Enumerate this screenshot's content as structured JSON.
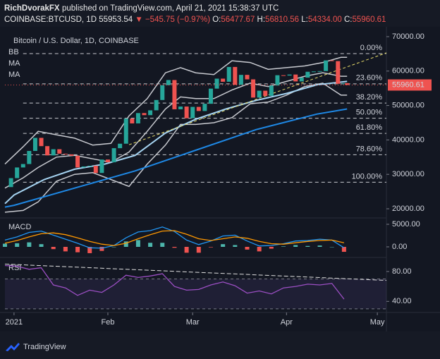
{
  "header": {
    "author": "RichDvorakFX",
    "published": "published on TradingView.com, April 21, 2021 15:38:37 UTC",
    "symbol": "COINBASE:BTCUSD, 1D",
    "price": "55953.54",
    "change": "▼ −545.75 (−0.97%)",
    "o_label": "O:",
    "o": "56477.67",
    "h_label": "H:",
    "h": "56810.56",
    "l_label": "L:",
    "l": "54334.00",
    "c_label": "C:",
    "c": "55960.61"
  },
  "footer": {
    "brand": "TradingView"
  },
  "chart_data": [
    {
      "type": "candlestick",
      "title": "Bitcoin / U.S. Dollar, 1D, COINBASE",
      "up_color": "#26a69a",
      "down_color": "#ef5350",
      "x": [
        -3,
        -1,
        1,
        3,
        5,
        7,
        9,
        11,
        13,
        15,
        17,
        19,
        21,
        23,
        25,
        27,
        29,
        31,
        33,
        35,
        37,
        39,
        41,
        43,
        45,
        47,
        49,
        51,
        53,
        55,
        57,
        59,
        61,
        63,
        65,
        67,
        69,
        71,
        73,
        75,
        77,
        79,
        81,
        83,
        85,
        87,
        89,
        91,
        93,
        95,
        97,
        99,
        101,
        103,
        105,
        107,
        109,
        110
      ],
      "close": [
        26300,
        28900,
        32000,
        33000,
        36800,
        40600,
        38200,
        35500,
        37300,
        36000,
        35800,
        35400,
        32000,
        32300,
        32500,
        30400,
        34300,
        33500,
        37600,
        38900,
        46200,
        44800,
        47800,
        47200,
        48600,
        51600,
        55900,
        57400,
        48900,
        49700,
        46300,
        49600,
        48400,
        50500,
        54900,
        57800,
        56900,
        61200,
        56000,
        58900,
        57600,
        52300,
        54300,
        52800,
        55800,
        58800,
        58700,
        59000,
        57000,
        58100,
        59800,
        59900,
        60000,
        63100,
        62900,
        56300,
        56500,
        55960.61
      ],
      "price_color": "#ef5350",
      "xlim": [
        -3,
        123
      ],
      "ylim": [
        17540,
        71430
      ],
      "yticks": [
        {
          "value": 20000,
          "label": "20000.00"
        },
        {
          "value": 30000,
          "label": "30000.00"
        },
        {
          "value": 40000,
          "label": "40000.00"
        },
        {
          "value": 50000,
          "label": "50000.00"
        },
        {
          "value": 60000,
          "label": "60000.00"
        },
        {
          "value": 70000,
          "label": "70000.00"
        }
      ],
      "indicators": [
        {
          "label": "BB",
          "color": "#c8cad0",
          "x": [
            -3,
            3,
            8,
            14,
            20,
            26,
            32,
            38,
            44,
            50,
            55,
            60,
            66,
            72,
            78,
            84,
            90,
            96,
            102,
            108,
            110
          ],
          "upper": [
            33000,
            38000,
            42500,
            41500,
            40500,
            38500,
            39000,
            47000,
            52000,
            59500,
            61000,
            59500,
            59000,
            63000,
            62500,
            60500,
            61000,
            61500,
            62500,
            64000,
            64000
          ],
          "basis": [
            26000,
            29000,
            32000,
            35000,
            35500,
            34500,
            33500,
            36500,
            42500,
            49000,
            52500,
            52000,
            52000,
            54500,
            56500,
            55500,
            57000,
            58500,
            59500,
            58500,
            58500
          ],
          "lower": [
            19000,
            19500,
            22000,
            28000,
            30000,
            30500,
            28500,
            26500,
            33000,
            38500,
            44500,
            44500,
            45000,
            46500,
            50500,
            51000,
            53000,
            55500,
            56500,
            53000,
            53000
          ]
        },
        {
          "label": "MA",
          "color": "#a6d4f2",
          "x": [
            -3,
            0,
            10,
            20,
            30,
            40,
            50,
            60,
            70,
            80,
            90,
            100,
            110
          ],
          "values": [
            21500,
            24000,
            28500,
            31500,
            33000,
            35500,
            42000,
            46000,
            49000,
            51500,
            53500,
            56000,
            57000
          ]
        },
        {
          "label": "MA",
          "color": "#1e88e5",
          "x": [
            -3,
            0,
            20,
            40,
            60,
            80,
            100,
            110
          ],
          "values": [
            20500,
            21000,
            26000,
            31000,
            37000,
            43000,
            47500,
            49000
          ]
        }
      ],
      "trendline": {
        "color": "#e8dc6a",
        "x": [
          38,
          123
        ],
        "y": [
          38600,
          65300
        ]
      },
      "fib": [
        {
          "label": "0.00%",
          "price": 65080
        },
        {
          "label": "23.60%",
          "price": 56300
        },
        {
          "label": "38.20%",
          "price": 50700
        },
        {
          "label": "50.00%",
          "price": 46300
        },
        {
          "label": "61.80%",
          "price": 41900
        },
        {
          "label": "78.60%",
          "price": 35700
        },
        {
          "label": "100.00%",
          "price": 27700
        }
      ]
    },
    {
      "type": "macd",
      "title": "MACD",
      "xlim": [
        -3,
        123
      ],
      "ylim": [
        -1875,
        6250
      ],
      "yticks": [
        {
          "value": 0,
          "label": "0.00"
        },
        {
          "value": 5000,
          "label": "5000.00"
        }
      ],
      "x": [
        -3,
        1,
        5,
        9,
        13,
        17,
        21,
        25,
        29,
        33,
        37,
        41,
        45,
        49,
        53,
        57,
        61,
        65,
        69,
        73,
        77,
        81,
        85,
        89,
        93,
        97,
        101,
        105,
        109
      ],
      "series": [
        {
          "color": "#2196f3",
          "values": [
            1500,
            2200,
            3200,
            3500,
            2600,
            1700,
            800,
            -200,
            -300,
            300,
            2000,
            3300,
            3600,
            4400,
            3400,
            1500,
            500,
            1300,
            2400,
            2600,
            1300,
            200,
            300,
            700,
            1300,
            1400,
            1700,
            1500,
            -200
          ]
        },
        {
          "color": "#ff9800",
          "values": [
            800,
            1400,
            2200,
            2900,
            3100,
            2700,
            2000,
            1200,
            600,
            300,
            800,
            1800,
            2700,
            3500,
            3600,
            2800,
            1800,
            1400,
            1800,
            2200,
            1900,
            1200,
            700,
            600,
            900,
            1200,
            1400,
            1500,
            900
          ]
        }
      ],
      "histogram": [
        700,
        800,
        1000,
        600,
        -500,
        -1000,
        -1200,
        -1400,
        -900,
        0,
        1200,
        1500,
        900,
        900,
        -200,
        -1300,
        -1300,
        -100,
        600,
        400,
        -600,
        -1000,
        -400,
        100,
        400,
        200,
        300,
        0,
        -1100
      ],
      "up_color": "#4db6ac",
      "down_color": "#ef5350"
    },
    {
      "type": "line",
      "title": "RSI",
      "xlim": [
        -3,
        123
      ],
      "ylim": [
        28,
        96
      ],
      "yticks": [
        {
          "value": 40,
          "label": "40.00"
        },
        {
          "value": 80,
          "label": "80.00"
        }
      ],
      "x": [
        -3,
        1,
        5,
        9,
        13,
        17,
        21,
        25,
        29,
        33,
        37,
        41,
        45,
        49,
        53,
        57,
        61,
        65,
        69,
        73,
        77,
        81,
        85,
        89,
        93,
        97,
        101,
        105,
        109
      ],
      "series": [
        {
          "color": "#9c4fc4",
          "values": [
            88,
            87,
            83,
            85,
            62,
            58,
            48,
            55,
            52,
            62,
            75,
            72,
            74,
            77,
            60,
            55,
            56,
            62,
            66,
            61,
            51,
            54,
            50,
            58,
            60,
            63,
            62,
            64,
            43
          ]
        }
      ],
      "bands": [
        70,
        30
      ],
      "band_color": "#7e57c2",
      "trendline": {
        "color": "#e0e0e0",
        "x": [
          -3,
          123
        ],
        "y": [
          90,
          68
        ]
      },
      "xticks": [
        {
          "value": 0,
          "label": "2021"
        },
        {
          "value": 31,
          "label": "Feb"
        },
        {
          "value": 59,
          "label": "Mar"
        },
        {
          "value": 90,
          "label": "Apr"
        },
        {
          "value": 120,
          "label": "May"
        }
      ]
    }
  ]
}
